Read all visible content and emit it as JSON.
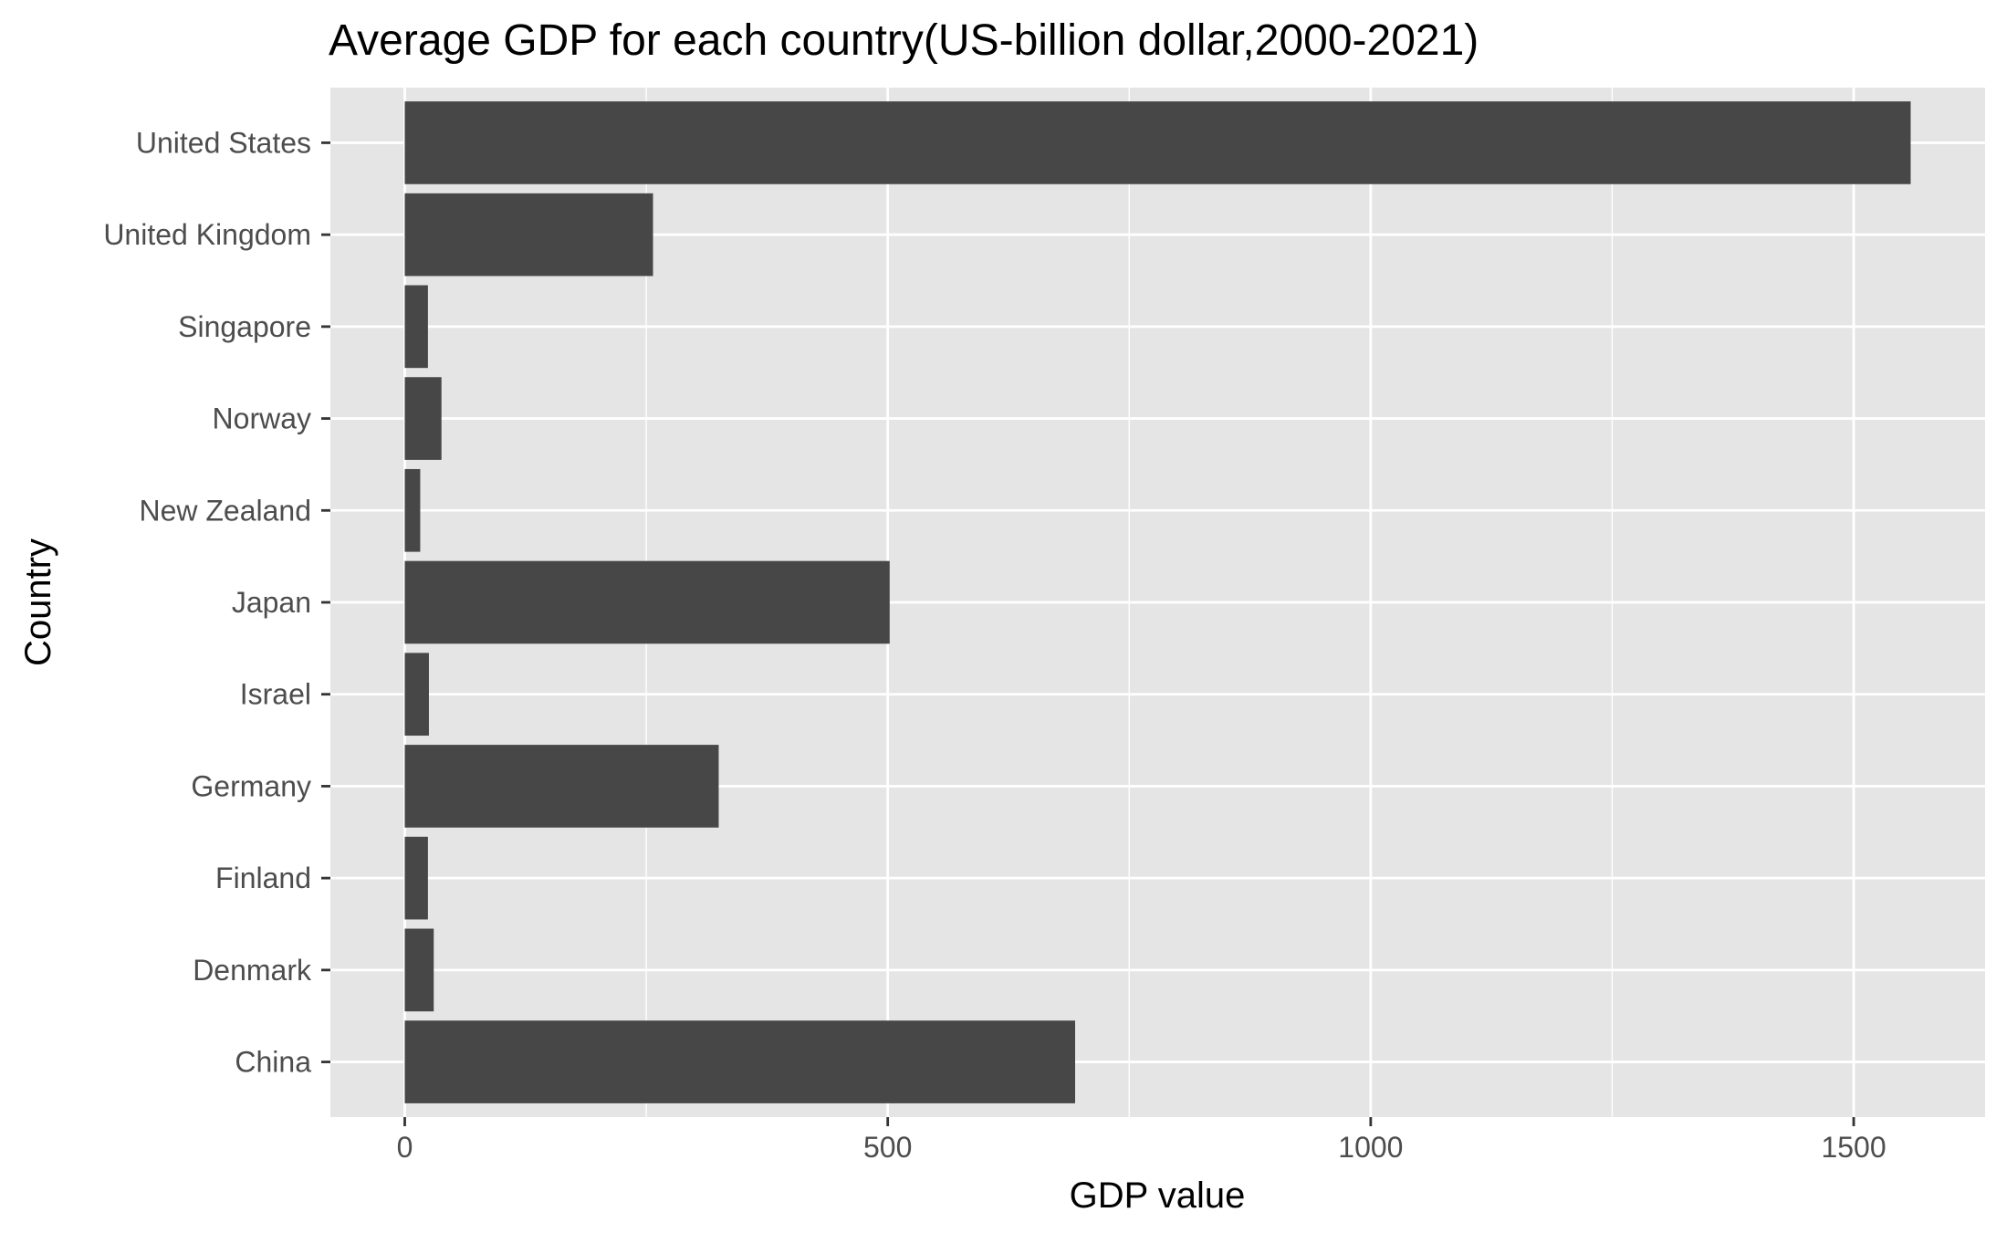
{
  "chart_data": {
    "type": "bar",
    "orientation": "horizontal",
    "title": "Average GDP for each country(US-billion dollar,2000-2021)",
    "xlabel": "GDP value",
    "ylabel": "Country",
    "categories": [
      "China",
      "Denmark",
      "Finland",
      "Germany",
      "Israel",
      "Japan",
      "New Zealand",
      "Norway",
      "Singapore",
      "United Kingdom",
      "United States"
    ],
    "values": [
      694,
      30,
      24,
      325,
      25,
      502,
      16,
      38,
      24,
      257,
      1559
    ],
    "xlim": [
      -77,
      1636
    ],
    "xticks": [
      0,
      500,
      1000,
      1500
    ],
    "xtick_labels": [
      "0",
      "500",
      "1000",
      "1500"
    ],
    "grid": true,
    "colors": {
      "bar": "#474747",
      "panel": "#e5e5e5",
      "grid": "#ffffff",
      "tick": "#333333"
    }
  }
}
